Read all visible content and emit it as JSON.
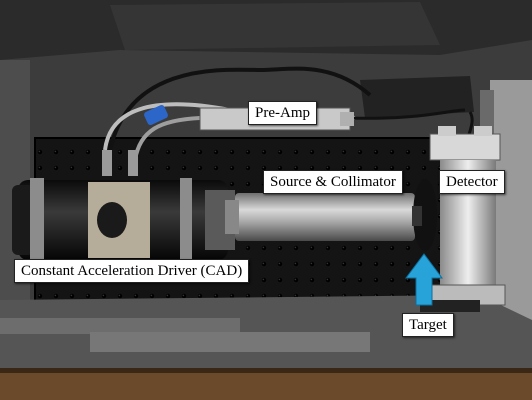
{
  "labels": {
    "pre_amp": "Pre-Amp",
    "source_collimator": "Source & Collimator",
    "detector": "Detector",
    "cad": "Constant Acceleration Driver (CAD)",
    "target": "Target"
  },
  "colors": {
    "foam": "#4a4a4a",
    "breadboard": "#111111",
    "arrow": "#27a3d9",
    "wood": "#6b4a2b"
  },
  "icons": {
    "target_arrow": "arrow-up-icon"
  }
}
